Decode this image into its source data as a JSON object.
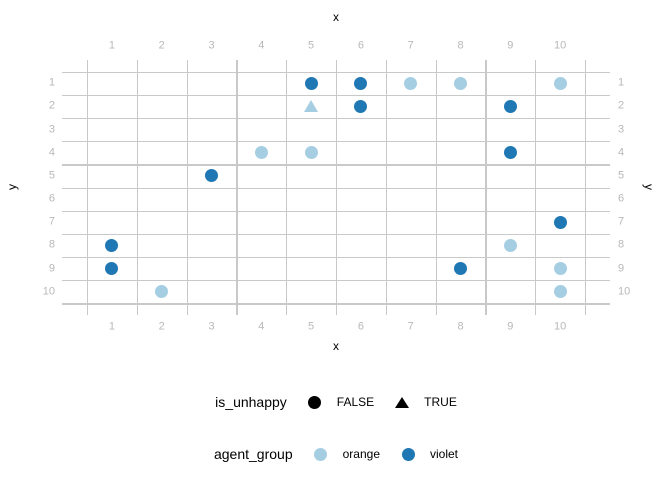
{
  "colors": {
    "orange_group": "#a6cee3",
    "violet_group": "#1f78b4",
    "gridline": "#c9c9c9",
    "tick_label": "#b8b8b8",
    "axis_title": "#000000",
    "legend_symbol": "#000000"
  },
  "chart_data": {
    "type": "scatter",
    "title": "",
    "x_axis": {
      "label": "x",
      "ticks": [
        1,
        2,
        3,
        4,
        5,
        6,
        7,
        8,
        9,
        10
      ],
      "range": [
        0,
        11
      ],
      "mirrored_top": true,
      "grid_at_half_positions": true
    },
    "y_axis": {
      "label": "y",
      "ticks": [
        1,
        2,
        3,
        4,
        5,
        6,
        7,
        8,
        9,
        10
      ],
      "range": [
        0,
        11
      ],
      "reversed": true,
      "mirrored_right": true,
      "grid_at_half_positions": true
    },
    "shape_encoding": {
      "variable": "is_unhappy",
      "FALSE": "circle",
      "TRUE": "triangle"
    },
    "color_encoding": {
      "variable": "agent_group",
      "orange": "#a6cee3",
      "violet": "#1f78b4"
    },
    "points": [
      {
        "x": 5,
        "y": 1,
        "agent_group": "violet",
        "is_unhappy": "FALSE"
      },
      {
        "x": 6,
        "y": 1,
        "agent_group": "violet",
        "is_unhappy": "FALSE"
      },
      {
        "x": 7,
        "y": 1,
        "agent_group": "orange",
        "is_unhappy": "FALSE"
      },
      {
        "x": 8,
        "y": 1,
        "agent_group": "orange",
        "is_unhappy": "FALSE"
      },
      {
        "x": 10,
        "y": 1,
        "agent_group": "orange",
        "is_unhappy": "FALSE"
      },
      {
        "x": 5,
        "y": 2,
        "agent_group": "orange",
        "is_unhappy": "TRUE"
      },
      {
        "x": 6,
        "y": 2,
        "agent_group": "violet",
        "is_unhappy": "FALSE"
      },
      {
        "x": 9,
        "y": 2,
        "agent_group": "violet",
        "is_unhappy": "FALSE"
      },
      {
        "x": 4,
        "y": 4,
        "agent_group": "orange",
        "is_unhappy": "FALSE"
      },
      {
        "x": 5,
        "y": 4,
        "agent_group": "orange",
        "is_unhappy": "FALSE"
      },
      {
        "x": 9,
        "y": 4,
        "agent_group": "violet",
        "is_unhappy": "FALSE"
      },
      {
        "x": 3,
        "y": 5,
        "agent_group": "violet",
        "is_unhappy": "FALSE"
      },
      {
        "x": 10,
        "y": 7,
        "agent_group": "violet",
        "is_unhappy": "FALSE"
      },
      {
        "x": 1,
        "y": 8,
        "agent_group": "violet",
        "is_unhappy": "FALSE"
      },
      {
        "x": 9,
        "y": 8,
        "agent_group": "orange",
        "is_unhappy": "FALSE"
      },
      {
        "x": 1,
        "y": 9,
        "agent_group": "violet",
        "is_unhappy": "FALSE"
      },
      {
        "x": 8,
        "y": 9,
        "agent_group": "violet",
        "is_unhappy": "FALSE"
      },
      {
        "x": 10,
        "y": 9,
        "agent_group": "orange",
        "is_unhappy": "FALSE"
      },
      {
        "x": 2,
        "y": 10,
        "agent_group": "orange",
        "is_unhappy": "FALSE"
      },
      {
        "x": 10,
        "y": 10,
        "agent_group": "orange",
        "is_unhappy": "FALSE"
      }
    ],
    "legends": [
      {
        "title": "is_unhappy",
        "items": [
          {
            "label": "FALSE",
            "shape": "circle",
            "color": "#000000"
          },
          {
            "label": "TRUE",
            "shape": "triangle",
            "color": "#000000"
          }
        ]
      },
      {
        "title": "agent_group",
        "items": [
          {
            "label": "orange",
            "shape": "circle",
            "color": "#a6cee3"
          },
          {
            "label": "violet",
            "shape": "circle",
            "color": "#1f78b4"
          }
        ]
      }
    ]
  }
}
